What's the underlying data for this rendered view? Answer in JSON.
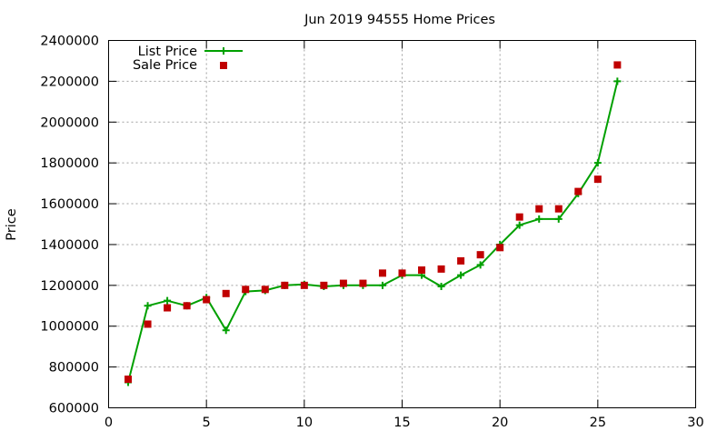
{
  "chart_data": {
    "type": "line",
    "title": "Jun 2019 94555 Home Prices",
    "xlabel": "",
    "ylabel": "Price",
    "xlim": [
      0,
      30
    ],
    "ylim": [
      600000,
      2400000
    ],
    "xticks": [
      0,
      5,
      10,
      15,
      20,
      25,
      30
    ],
    "yticks": [
      600000,
      800000,
      1000000,
      1200000,
      1400000,
      1600000,
      1800000,
      2000000,
      2200000,
      2400000
    ],
    "grid": true,
    "legend_position": "top-left",
    "colors": {
      "list": "#00a000",
      "sale": "#c00000"
    },
    "series": [
      {
        "name": "List Price",
        "style": "line-with-plus-markers",
        "x": [
          1,
          2,
          3,
          4,
          5,
          6,
          7,
          8,
          9,
          10,
          11,
          12,
          13,
          14,
          15,
          16,
          17,
          18,
          19,
          20,
          21,
          22,
          23,
          24,
          25,
          26
        ],
        "values": [
          725000,
          1100000,
          1125000,
          1100000,
          1140000,
          980000,
          1170000,
          1175000,
          1200000,
          1205000,
          1195000,
          1200000,
          1200000,
          1200000,
          1250000,
          1250000,
          1195000,
          1250000,
          1300000,
          1400000,
          1495000,
          1525000,
          1525000,
          1650000,
          1800000,
          2200000
        ]
      },
      {
        "name": "Sale Price",
        "style": "square-markers",
        "x": [
          1,
          2,
          3,
          4,
          5,
          6,
          7,
          8,
          9,
          10,
          11,
          12,
          13,
          14,
          15,
          16,
          17,
          18,
          19,
          20,
          21,
          22,
          23,
          24,
          25,
          26
        ],
        "values": [
          740000,
          1010000,
          1090000,
          1100000,
          1130000,
          1160000,
          1180000,
          1180000,
          1200000,
          1200000,
          1200000,
          1210000,
          1210000,
          1260000,
          1260000,
          1275000,
          1280000,
          1320000,
          1350000,
          1385000,
          1535000,
          1575000,
          1575000,
          1660000,
          1720000,
          2280000
        ]
      }
    ]
  }
}
